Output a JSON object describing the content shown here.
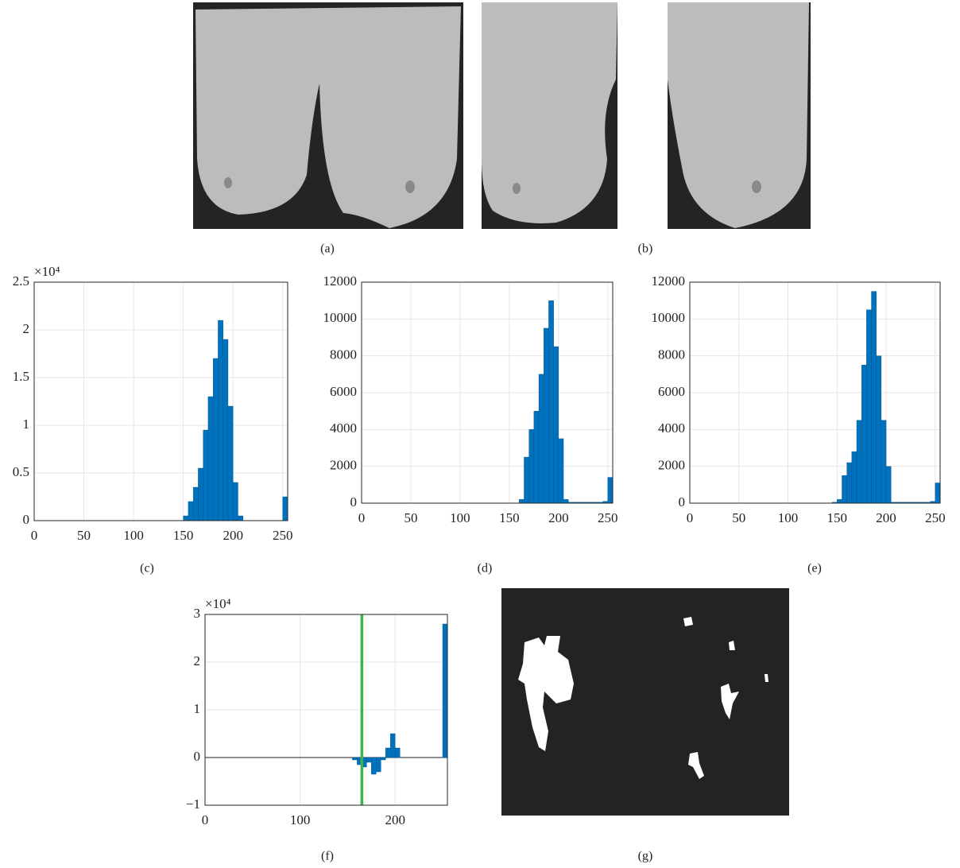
{
  "images": [
    {
      "caption": "(a)"
    },
    {
      "caption": "(b)"
    },
    {
      "caption": "(g)"
    }
  ],
  "chart_data": [
    {
      "type": "histogram",
      "caption": "(c)",
      "color": "#0072bd",
      "grid": true,
      "y_exponent": "×10⁴",
      "bins": [
        0,
        5,
        10,
        15,
        20,
        25,
        30,
        35,
        40,
        45,
        50,
        55,
        60,
        65,
        70,
        75,
        80,
        85,
        90,
        95,
        100,
        105,
        110,
        115,
        120,
        125,
        130,
        135,
        140,
        145,
        150,
        155,
        160,
        165,
        170,
        175,
        180,
        185,
        190,
        195,
        200,
        205,
        210,
        215,
        220,
        225,
        230,
        235,
        240,
        245,
        250,
        255
      ],
      "values": [
        0,
        0,
        0,
        0,
        0,
        0,
        0,
        0,
        0,
        0,
        0,
        0,
        0,
        0,
        0,
        0,
        0,
        0,
        0,
        0,
        0,
        0,
        0,
        0,
        0,
        0,
        0,
        0,
        0,
        0,
        500,
        2000,
        3500,
        5500,
        9500,
        13000,
        17000,
        21000,
        19000,
        12000,
        4000,
        500,
        0,
        0,
        0,
        0,
        0,
        0,
        0,
        0,
        2500
      ],
      "xlim": [
        0,
        255
      ],
      "xticks": [
        0,
        50,
        100,
        150,
        200,
        250
      ],
      "ylim": [
        0,
        25000
      ],
      "yticks": [
        0,
        {
          "value": 5000,
          "label": "0.5"
        },
        {
          "value": 10000,
          "label": "1"
        },
        {
          "value": 15000,
          "label": "1.5"
        },
        {
          "value": 20000,
          "label": "2"
        },
        {
          "value": 25000,
          "label": "2.5"
        }
      ]
    },
    {
      "type": "histogram",
      "caption": "(d)",
      "color": "#0072bd",
      "grid": true,
      "bins": [
        0,
        5,
        10,
        15,
        20,
        25,
        30,
        35,
        40,
        45,
        50,
        55,
        60,
        65,
        70,
        75,
        80,
        85,
        90,
        95,
        100,
        105,
        110,
        115,
        120,
        125,
        130,
        135,
        140,
        145,
        150,
        155,
        160,
        165,
        170,
        175,
        180,
        185,
        190,
        195,
        200,
        205,
        210,
        215,
        220,
        225,
        230,
        235,
        240,
        245,
        250,
        255
      ],
      "values": [
        0,
        0,
        0,
        0,
        0,
        0,
        0,
        0,
        0,
        0,
        0,
        0,
        0,
        0,
        0,
        0,
        0,
        0,
        0,
        0,
        0,
        0,
        0,
        0,
        0,
        0,
        0,
        0,
        0,
        0,
        0,
        0,
        200,
        2500,
        4000,
        5000,
        7000,
        9500,
        11000,
        8500,
        3500,
        200,
        50,
        50,
        50,
        50,
        50,
        50,
        50,
        100,
        1400
      ],
      "xlim": [
        0,
        255
      ],
      "xticks": [
        0,
        50,
        100,
        150,
        200,
        250
      ],
      "ylim": [
        0,
        12000
      ],
      "yticks": [
        0,
        2000,
        4000,
        6000,
        8000,
        10000,
        12000
      ]
    },
    {
      "type": "histogram",
      "caption": "(e)",
      "color": "#0072bd",
      "grid": true,
      "bins": [
        0,
        5,
        10,
        15,
        20,
        25,
        30,
        35,
        40,
        45,
        50,
        55,
        60,
        65,
        70,
        75,
        80,
        85,
        90,
        95,
        100,
        105,
        110,
        115,
        120,
        125,
        130,
        135,
        140,
        145,
        150,
        155,
        160,
        165,
        170,
        175,
        180,
        185,
        190,
        195,
        200,
        205,
        210,
        215,
        220,
        225,
        230,
        235,
        240,
        245,
        250,
        255
      ],
      "values": [
        0,
        0,
        0,
        0,
        0,
        0,
        0,
        0,
        0,
        0,
        0,
        0,
        0,
        0,
        0,
        0,
        0,
        0,
        0,
        0,
        0,
        0,
        0,
        0,
        0,
        0,
        0,
        0,
        0,
        50,
        200,
        1500,
        2200,
        2800,
        4500,
        7500,
        10500,
        11500,
        8000,
        4500,
        2000,
        50,
        50,
        50,
        50,
        50,
        50,
        50,
        50,
        100,
        1100
      ],
      "xlim": [
        0,
        255
      ],
      "xticks": [
        0,
        50,
        100,
        150,
        200,
        250
      ],
      "ylim": [
        0,
        12000
      ],
      "yticks": [
        0,
        2000,
        4000,
        6000,
        8000,
        10000,
        12000
      ]
    },
    {
      "type": "histogram",
      "caption": "(f)",
      "color": "#0072bd",
      "grid": true,
      "y_exponent": "×10⁴",
      "threshold": 165,
      "threshold_color": "#3cb44b",
      "bins": [
        0,
        5,
        10,
        15,
        20,
        25,
        30,
        35,
        40,
        45,
        50,
        55,
        60,
        65,
        70,
        75,
        80,
        85,
        90,
        95,
        100,
        105,
        110,
        115,
        120,
        125,
        130,
        135,
        140,
        145,
        150,
        155,
        160,
        165,
        170,
        175,
        180,
        185,
        190,
        195,
        200,
        205,
        210,
        215,
        220,
        225,
        230,
        235,
        240,
        245,
        250,
        255
      ],
      "values": [
        0,
        0,
        0,
        0,
        0,
        0,
        0,
        0,
        0,
        0,
        0,
        0,
        0,
        0,
        0,
        0,
        0,
        0,
        0,
        0,
        0,
        0,
        0,
        0,
        0,
        0,
        0,
        0,
        0,
        0,
        0,
        -500,
        -1500,
        -2000,
        -1000,
        -3500,
        -3000,
        -500,
        2000,
        5000,
        2000,
        0,
        0,
        0,
        0,
        0,
        0,
        0,
        0,
        0,
        28000
      ],
      "xlim": [
        0,
        255
      ],
      "xticks": [
        0,
        100,
        200
      ],
      "ylim": [
        -10000,
        30000
      ],
      "yticks": [
        {
          "value": -10000,
          "label": "−1"
        },
        0,
        {
          "value": 10000,
          "label": "1"
        },
        {
          "value": 20000,
          "label": "2"
        },
        {
          "value": 30000,
          "label": "3"
        }
      ]
    }
  ]
}
